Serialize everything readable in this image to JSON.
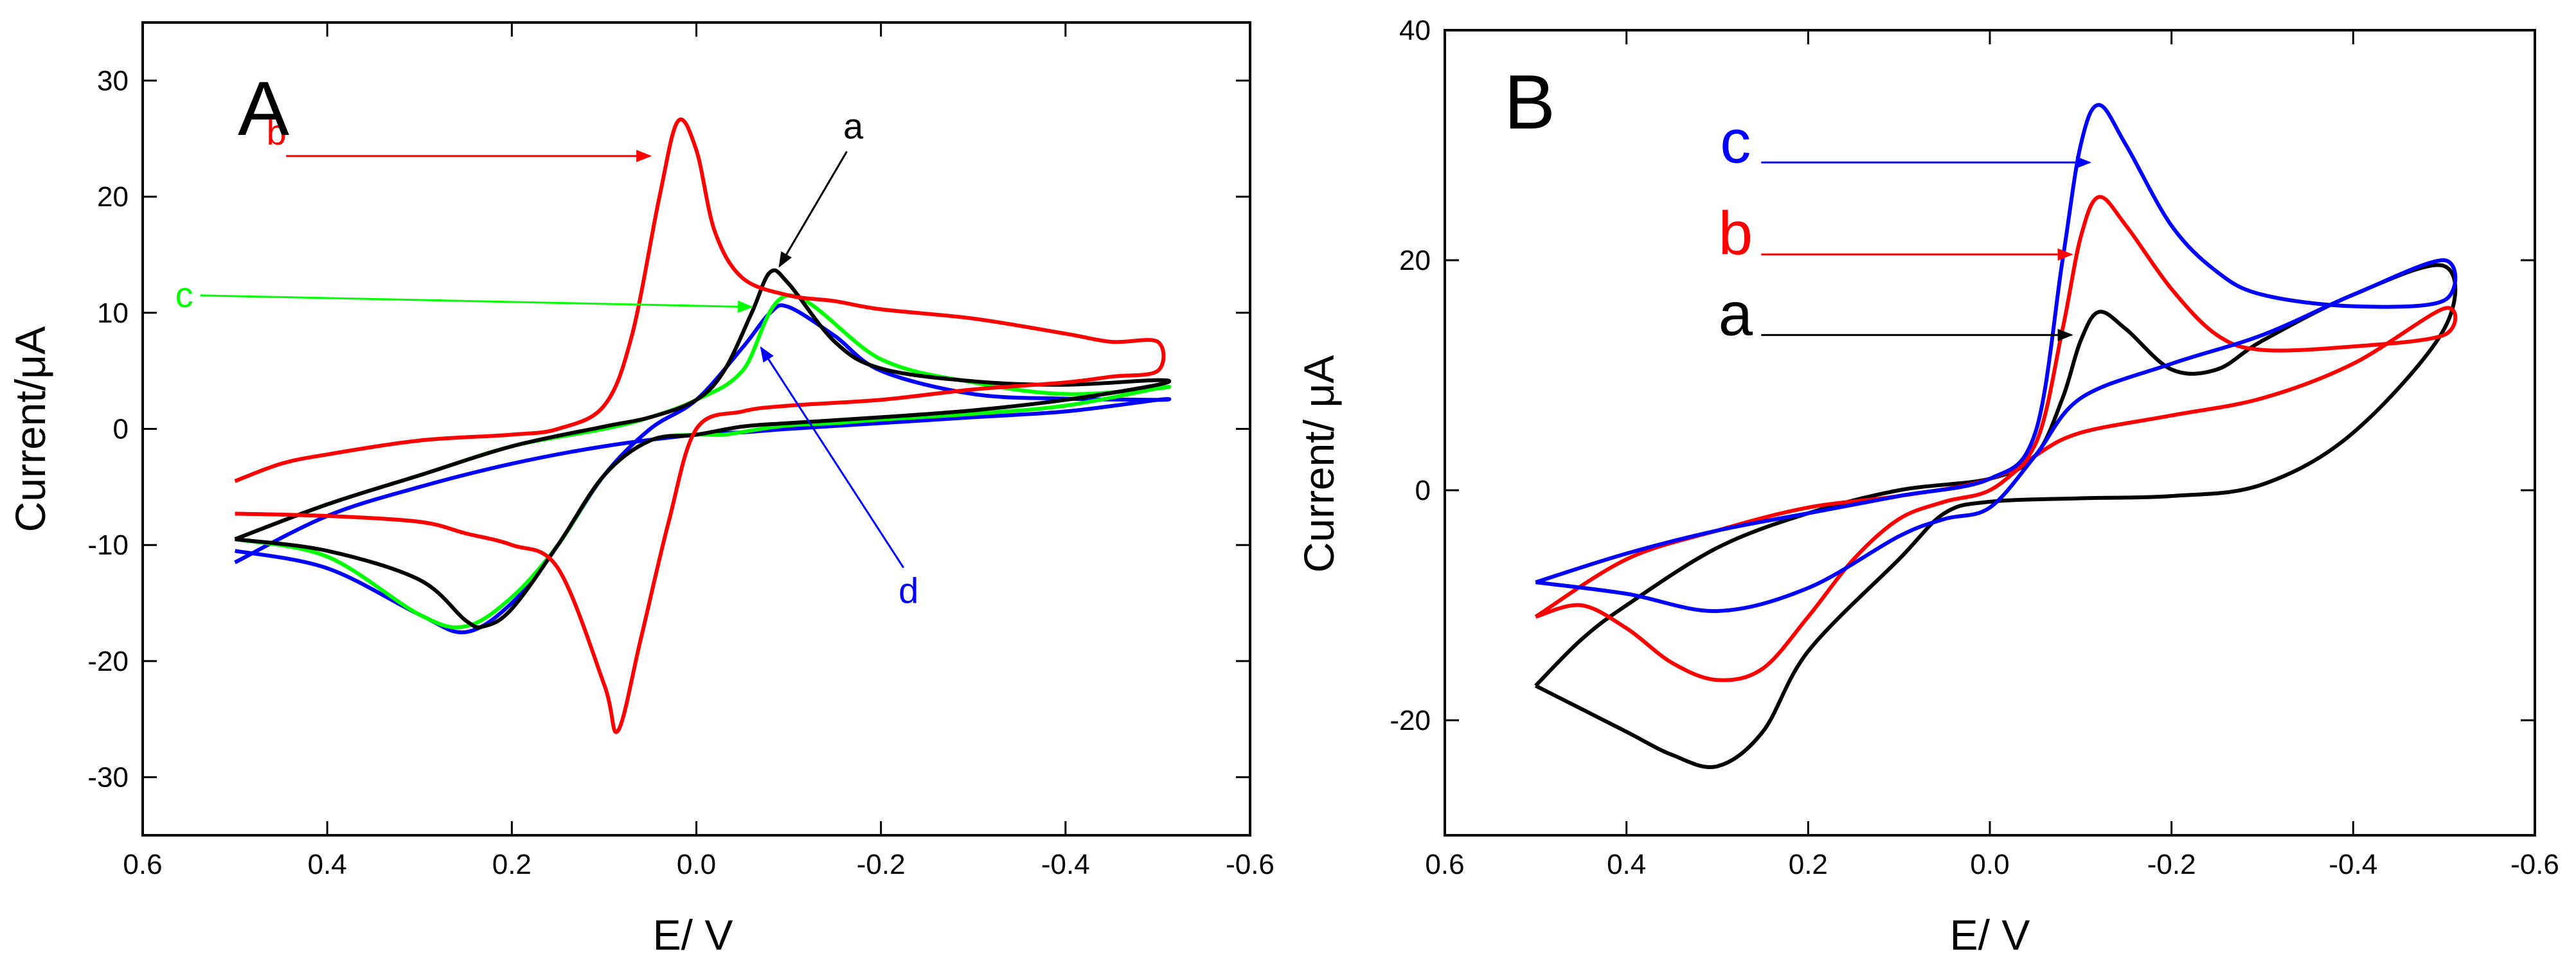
{
  "chart_data": [
    {
      "panel": "A",
      "type": "line",
      "title": "A",
      "xlabel": "E/ V",
      "ylabel": "Current/μA",
      "xlim": [
        0.6,
        -0.6
      ],
      "ylim": [
        -35,
        35
      ],
      "xticks": [
        0.6,
        0.4,
        0.2,
        0.0,
        -0.2,
        -0.4,
        -0.6
      ],
      "xtick_labels": [
        "0.6",
        "0.4",
        "0.2",
        "0.0",
        "-0.2",
        "-0.4",
        "-0.6"
      ],
      "yticks": [
        -30,
        -20,
        -10,
        0,
        10,
        20,
        30
      ],
      "ytick_labels": [
        "-30",
        "-20",
        "-10",
        "0",
        "10",
        "20",
        "30"
      ],
      "series": [
        {
          "name": "d",
          "color": "#0000ff",
          "x": [
            0.5,
            0.4,
            0.3,
            0.2,
            0.1,
            0.0,
            -0.05,
            -0.1,
            -0.2,
            -0.3,
            -0.4,
            -0.5,
            -0.5,
            -0.4,
            -0.3,
            -0.2,
            -0.15,
            -0.1,
            -0.08,
            -0.05,
            0.0,
            0.05,
            0.1,
            0.15,
            0.2,
            0.25,
            0.3,
            0.4,
            0.5
          ],
          "y": [
            -11.5,
            -7.5,
            -5,
            -3,
            -1.5,
            -0.5,
            -0.3,
            0,
            0.5,
            1,
            1.5,
            2.5,
            2.5,
            2.6,
            3,
            5,
            8,
            10.5,
            10,
            7,
            2.5,
            0,
            -4,
            -10,
            -15,
            -17.5,
            -16,
            -12,
            -10.5
          ]
        },
        {
          "name": "c",
          "color": "#00ff00",
          "x": [
            0.5,
            0.4,
            0.3,
            0.2,
            0.1,
            0.05,
            0.0,
            -0.05,
            -0.1,
            -0.2,
            -0.3,
            -0.4,
            -0.5,
            -0.5,
            -0.4,
            -0.3,
            -0.2,
            -0.15,
            -0.1,
            -0.07,
            -0.03,
            0.0,
            0.05,
            0.1,
            0.15,
            0.2,
            0.25,
            0.3,
            0.4,
            0.5
          ],
          "y": [
            -9.5,
            -6.5,
            -4,
            -1.5,
            0,
            1,
            2.5,
            5,
            11.5,
            6,
            4,
            3,
            3.5,
            3.5,
            2,
            1.3,
            0.8,
            0.5,
            0.3,
            0,
            -0.5,
            -0.5,
            -1,
            -4,
            -10,
            -14.5,
            -17,
            -16,
            -11,
            -9.5
          ]
        },
        {
          "name": "a",
          "color": "#000000",
          "x": [
            0.5,
            0.4,
            0.3,
            0.2,
            0.1,
            0.05,
            0.0,
            -0.03,
            -0.06,
            -0.08,
            -0.1,
            -0.15,
            -0.2,
            -0.3,
            -0.4,
            -0.5,
            -0.5,
            -0.4,
            -0.3,
            -0.2,
            -0.1,
            -0.05,
            0.0,
            0.05,
            0.1,
            0.15,
            0.2,
            0.23,
            0.25,
            0.3,
            0.4,
            0.5
          ],
          "y": [
            -9.5,
            -6.5,
            -4,
            -1.5,
            0.2,
            1,
            2.5,
            5,
            10,
            13.5,
            12.5,
            7.5,
            5.2,
            4.1,
            3.8,
            4.2,
            3.8,
            2.5,
            1.6,
            1,
            0.5,
            0.2,
            -0.5,
            -1,
            -4,
            -10,
            -15.5,
            -17,
            -16.5,
            -13,
            -10.5,
            -9.5
          ]
        },
        {
          "name": "b",
          "color": "#ff0000",
          "x": [
            0.5,
            0.45,
            0.4,
            0.3,
            0.2,
            0.15,
            0.1,
            0.07,
            0.04,
            0.02,
            0.0,
            -0.02,
            -0.05,
            -0.1,
            -0.15,
            -0.2,
            -0.3,
            -0.4,
            -0.45,
            -0.5,
            -0.5,
            -0.45,
            -0.4,
            -0.3,
            -0.2,
            -0.1,
            -0.05,
            0.0,
            0.03,
            0.06,
            0.085,
            0.1,
            0.15,
            0.2,
            0.25,
            0.3,
            0.4,
            0.5
          ],
          "y": [
            -4.5,
            -3,
            -2.2,
            -1,
            -0.5,
            0,
            2,
            8,
            20,
            26.5,
            24,
            17,
            13,
            11.5,
            11,
            10.3,
            9.5,
            8.2,
            7.5,
            7.5,
            5,
            4.5,
            4,
            3.4,
            2.5,
            2,
            1.5,
            0,
            -8,
            -18,
            -26,
            -22,
            -12,
            -10,
            -9,
            -8,
            -7.5,
            -7.3
          ]
        }
      ],
      "annotations": [
        {
          "text": "a",
          "color": "#000000",
          "text_x": -0.17,
          "text_y": 25,
          "arrow_x": -0.09,
          "arrow_y": 14
        },
        {
          "text": "b",
          "color": "#ff0000",
          "text_x": 0.455,
          "text_y": 24.5,
          "arrow_x": 0.05,
          "arrow_y": 23.5
        },
        {
          "text": "c",
          "color": "#00ff00",
          "text_x": 0.555,
          "text_y": 10.5,
          "arrow_x": -0.06,
          "arrow_y": 10.5
        },
        {
          "text": "d",
          "color": "#0000ff",
          "text_x": -0.23,
          "text_y": -15,
          "arrow_x": -0.07,
          "arrow_y": 7
        }
      ]
    },
    {
      "panel": "B",
      "type": "line",
      "title": "B",
      "xlabel": "E/ V",
      "ylabel": "Current/ μA",
      "xlim": [
        0.6,
        -0.6
      ],
      "ylim": [
        -30,
        40
      ],
      "xticks": [
        0.6,
        0.4,
        0.2,
        0.0,
        -0.2,
        -0.4,
        -0.6
      ],
      "xtick_labels": [
        "0.6",
        "0.4",
        "0.2",
        "0.0",
        "-0.2",
        "-0.4",
        "-0.6"
      ],
      "yticks": [
        -20,
        0,
        20,
        40
      ],
      "ytick_labels": [
        "-20",
        "0",
        "20",
        "40"
      ],
      "series": [
        {
          "name": "a",
          "color": "#000000",
          "x": [
            0.5,
            0.45,
            0.4,
            0.3,
            0.2,
            0.1,
            0.0,
            -0.05,
            -0.08,
            -0.1,
            -0.12,
            -0.15,
            -0.2,
            -0.25,
            -0.3,
            -0.4,
            -0.5,
            -0.5,
            -0.4,
            -0.3,
            -0.2,
            -0.1,
            0.0,
            0.05,
            0.1,
            0.2,
            0.25,
            0.3,
            0.35,
            0.4,
            0.45,
            0.5
          ],
          "y": [
            -17,
            -13,
            -10,
            -5,
            -2,
            0,
            1,
            3,
            8,
            13,
            15.5,
            14,
            10.5,
            10.5,
            13,
            17,
            19.5,
            14,
            5,
            0.5,
            -0.5,
            -0.7,
            -1,
            -2,
            -6,
            -14,
            -21,
            -24,
            -23,
            -21,
            -19,
            -17
          ]
        },
        {
          "name": "b",
          "color": "#ff0000",
          "x": [
            0.5,
            0.4,
            0.3,
            0.2,
            0.1,
            0.0,
            -0.05,
            -0.08,
            -0.1,
            -0.12,
            -0.15,
            -0.2,
            -0.25,
            -0.3,
            -0.4,
            -0.5,
            -0.5,
            -0.4,
            -0.3,
            -0.2,
            -0.1,
            -0.05,
            0.0,
            0.05,
            0.1,
            0.15,
            0.2,
            0.25,
            0.3,
            0.35,
            0.4,
            0.45,
            0.5
          ],
          "y": [
            -11,
            -6,
            -3.5,
            -1.5,
            -0.5,
            1,
            4,
            14,
            22,
            25.5,
            23,
            17.5,
            13.5,
            12.2,
            12.5,
            13.5,
            15.8,
            11,
            8,
            6.5,
            5,
            3,
            0,
            -1,
            -2.5,
            -6,
            -11,
            -15.5,
            -16.5,
            -15,
            -12,
            -10,
            -11
          ]
        },
        {
          "name": "c",
          "color": "#0000ff",
          "x": [
            0.5,
            0.4,
            0.3,
            0.2,
            0.1,
            0.0,
            -0.05,
            -0.08,
            -0.1,
            -0.12,
            -0.15,
            -0.2,
            -0.25,
            -0.3,
            -0.4,
            -0.5,
            -0.5,
            -0.4,
            -0.3,
            -0.2,
            -0.1,
            -0.05,
            0.0,
            0.05,
            0.1,
            0.2,
            0.3,
            0.4,
            0.5
          ],
          "y": [
            -8,
            -5.5,
            -3.5,
            -2,
            -0.5,
            1,
            5,
            20,
            30,
            33.5,
            30,
            23,
            19,
            17,
            16,
            16.5,
            20,
            17,
            13.5,
            11,
            8,
            3,
            -1.5,
            -2.5,
            -4,
            -8.5,
            -10.5,
            -9,
            -8
          ]
        }
      ],
      "annotations": [
        {
          "text": "c",
          "color": "#0000ff",
          "text_x": 0.28,
          "text_y": 28.5,
          "arrow_x": -0.11,
          "arrow_y": 28.5
        },
        {
          "text": "b",
          "color": "#ff0000",
          "text_x": 0.28,
          "text_y": 20.5,
          "arrow_x": -0.09,
          "arrow_y": 20.5
        },
        {
          "text": "a",
          "color": "#000000",
          "text_x": 0.28,
          "text_y": 13.5,
          "arrow_x": -0.09,
          "arrow_y": 13.5
        }
      ]
    }
  ]
}
